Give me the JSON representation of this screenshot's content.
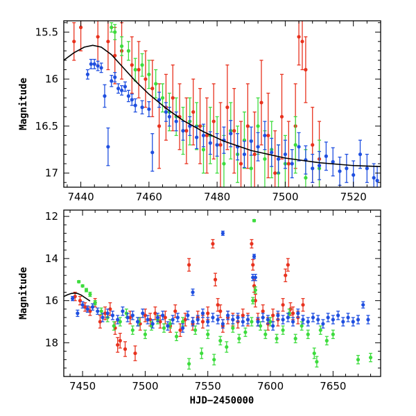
{
  "chart_data": [
    {
      "type": "scatter",
      "panel": "top",
      "title": "",
      "ylabel": "Magnitude",
      "xlabel": "",
      "xlim": [
        7435,
        7528
      ],
      "ylim": [
        17.15,
        15.38
      ],
      "y_inverted": true,
      "xticks": [
        7440,
        7460,
        7480,
        7500,
        7520
      ],
      "yticks": [
        15.5,
        16,
        16.5,
        17
      ],
      "xtick_labels": [
        "7440",
        "7460",
        "7480",
        "7500",
        "7520"
      ],
      "ytick_labels": [
        "15.5",
        "16",
        "16.5",
        "17"
      ],
      "model_curve": {
        "color": "#000000",
        "x": [
          7435,
          7438,
          7441,
          7443.5,
          7446,
          7449,
          7452,
          7456,
          7460,
          7465,
          7470,
          7476,
          7482,
          7490,
          7500,
          7510,
          7520,
          7528
        ],
        "y": [
          15.8,
          15.72,
          15.66,
          15.64,
          15.66,
          15.74,
          15.86,
          16.02,
          16.16,
          16.31,
          16.44,
          16.56,
          16.66,
          16.76,
          16.84,
          16.89,
          16.92,
          16.93
        ]
      },
      "series": [
        {
          "color": "#1f4fe0",
          "x": [
            7442,
            7443,
            7444,
            7445,
            7446,
            7447,
            7448,
            7449,
            7450,
            7451,
            7452,
            7453,
            7454,
            7455,
            7456,
            7458,
            7460,
            7461,
            7463,
            7465,
            7466,
            7468,
            7470,
            7472,
            7474,
            7476,
            7478,
            7480,
            7482,
            7484,
            7486,
            7488,
            7490,
            7492,
            7494,
            7496,
            7498,
            7500,
            7502,
            7504,
            7506,
            7508,
            7510,
            7512,
            7514,
            7516,
            7518,
            7520,
            7522,
            7524,
            7526,
            7527
          ],
          "y": [
            15.95,
            15.84,
            15.84,
            15.86,
            15.88,
            16.18,
            16.72,
            16.02,
            15.98,
            16.1,
            16.12,
            16.08,
            16.18,
            16.22,
            16.28,
            16.3,
            16.32,
            16.78,
            16.22,
            16.35,
            16.4,
            16.45,
            16.55,
            16.5,
            16.62,
            16.6,
            16.68,
            16.7,
            16.65,
            16.58,
            16.72,
            16.8,
            16.66,
            16.72,
            16.6,
            16.78,
            16.85,
            16.8,
            16.9,
            16.72,
            16.86,
            16.95,
            16.92,
            16.82,
            16.88,
            16.98,
            16.95,
            17.02,
            16.8,
            16.95,
            17.05,
            17.08
          ],
          "err": [
            0.05,
            0.05,
            0.05,
            0.05,
            0.05,
            0.12,
            0.2,
            0.06,
            0.05,
            0.05,
            0.05,
            0.05,
            0.06,
            0.06,
            0.07,
            0.07,
            0.08,
            0.2,
            0.08,
            0.1,
            0.1,
            0.1,
            0.1,
            0.1,
            0.12,
            0.12,
            0.12,
            0.12,
            0.14,
            0.14,
            0.14,
            0.14,
            0.15,
            0.15,
            0.15,
            0.15,
            0.15,
            0.15,
            0.15,
            0.15,
            0.15,
            0.15,
            0.15,
            0.15,
            0.15,
            0.15,
            0.15,
            0.15,
            0.15,
            0.15,
            0.15,
            0.15
          ]
        },
        {
          "color": "#e8321e",
          "x": [
            7438,
            7440,
            7445,
            7448,
            7450,
            7452,
            7455,
            7457,
            7459,
            7461,
            7463,
            7465,
            7467,
            7469,
            7471,
            7473,
            7475,
            7477,
            7479,
            7481,
            7483,
            7485,
            7487,
            7489,
            7491,
            7493,
            7495,
            7497,
            7499,
            7501,
            7503,
            7504,
            7505,
            7506,
            7508,
            7510
          ],
          "y": [
            15.6,
            15.45,
            15.55,
            15.6,
            15.75,
            15.7,
            15.85,
            15.9,
            16.0,
            16.1,
            16.5,
            16.3,
            16.2,
            16.4,
            16.55,
            16.35,
            16.5,
            16.6,
            16.45,
            16.7,
            16.3,
            16.55,
            16.9,
            16.5,
            16.8,
            16.25,
            16.6,
            17.0,
            16.4,
            16.9,
            16.5,
            15.55,
            15.6,
            15.9,
            16.7,
            16.85
          ],
          "err": [
            0.2,
            0.25,
            0.3,
            0.3,
            0.3,
            0.3,
            0.3,
            0.3,
            0.3,
            0.3,
            0.45,
            0.35,
            0.35,
            0.35,
            0.35,
            0.35,
            0.4,
            0.4,
            0.4,
            0.45,
            0.45,
            0.45,
            0.45,
            0.45,
            0.45,
            0.45,
            0.45,
            0.45,
            0.45,
            0.45,
            0.45,
            0.3,
            0.3,
            0.35,
            0.4,
            0.4
          ]
        },
        {
          "color": "#3ddc3d",
          "x": [
            7449,
            7450,
            7452,
            7454,
            7456,
            7458,
            7460,
            7462,
            7464,
            7466,
            7468,
            7470,
            7472,
            7474,
            7476,
            7478,
            7480,
            7482,
            7484,
            7486,
            7488,
            7490,
            7492,
            7494,
            7496,
            7498,
            7500,
            7503,
            7506,
            7510
          ],
          "y": [
            15.45,
            15.5,
            15.65,
            15.7,
            15.9,
            15.85,
            15.95,
            16.05,
            16.2,
            16.35,
            16.4,
            16.55,
            16.45,
            16.5,
            16.75,
            16.6,
            16.7,
            16.9,
            16.55,
            16.8,
            16.65,
            16.95,
            16.5,
            16.85,
            16.75,
            17.0,
            16.9,
            16.7,
            17.05,
            16.95
          ],
          "err": [
            0.05,
            0.08,
            0.1,
            0.1,
            0.12,
            0.12,
            0.15,
            0.15,
            0.15,
            0.2,
            0.2,
            0.25,
            0.25,
            0.25,
            0.25,
            0.3,
            0.3,
            0.3,
            0.3,
            0.3,
            0.3,
            0.3,
            0.3,
            0.3,
            0.3,
            0.3,
            0.3,
            0.3,
            0.3,
            0.3
          ]
        }
      ]
    },
    {
      "type": "scatter",
      "panel": "bottom",
      "title": "",
      "ylabel": "Magnitude",
      "xlabel": "HJD−2450000",
      "xlim": [
        7435,
        7688
      ],
      "ylim": [
        19.6,
        11.7
      ],
      "y_inverted": true,
      "xticks": [
        7450,
        7500,
        7550,
        7600,
        7650
      ],
      "yticks": [
        12,
        14,
        16,
        18
      ],
      "xtick_labels": [
        "7450",
        "7500",
        "7550",
        "7600",
        "7650"
      ],
      "ytick_labels": [
        "12",
        "14",
        "16",
        "18"
      ],
      "model_curve": {
        "color": "#000000",
        "x": [
          7435,
          7438,
          7441,
          7443.5,
          7446,
          7449,
          7452,
          7456
        ],
        "y": [
          15.8,
          15.72,
          15.66,
          15.64,
          15.66,
          15.74,
          15.86,
          16.02
        ]
      },
      "series": [
        {
          "color": "#1f4fe0",
          "x": [
            7442,
            7446,
            7450,
            7454,
            7458,
            7462,
            7466,
            7470,
            7474,
            7478,
            7482,
            7486,
            7490,
            7494,
            7498,
            7502,
            7506,
            7510,
            7514,
            7518,
            7522,
            7526,
            7530,
            7534,
            7538,
            7542,
            7546,
            7550,
            7554,
            7558,
            7562,
            7566,
            7570,
            7574,
            7578,
            7582,
            7586,
            7587,
            7590,
            7594,
            7598,
            7602,
            7606,
            7610,
            7614,
            7618,
            7622,
            7626,
            7630,
            7634,
            7638,
            7642,
            7646,
            7650,
            7654,
            7658,
            7662,
            7666,
            7670,
            7674,
            7678,
            7538,
            7562,
            7588
          ],
          "y": [
            15.9,
            16.6,
            16.2,
            16.4,
            16.3,
            16.5,
            16.8,
            16.6,
            16.7,
            16.9,
            16.5,
            16.8,
            16.7,
            17.0,
            16.6,
            16.9,
            17.1,
            16.8,
            16.7,
            17.2,
            16.9,
            16.8,
            17.3,
            16.7,
            17.0,
            16.9,
            16.6,
            17.0,
            16.8,
            16.9,
            17.1,
            16.7,
            16.9,
            16.8,
            17.0,
            16.9,
            14.9,
            13.9,
            17.0,
            16.8,
            16.9,
            17.2,
            16.7,
            16.9,
            16.8,
            17.0,
            16.6,
            16.9,
            17.0,
            16.8,
            16.9,
            17.1,
            16.8,
            16.9,
            16.7,
            17.0,
            16.8,
            17.0,
            16.9,
            16.2,
            16.9,
            15.6,
            12.8,
            14.9
          ],
          "err": [
            0.1,
            0.15,
            0.15,
            0.15,
            0.15,
            0.15,
            0.2,
            0.2,
            0.2,
            0.2,
            0.2,
            0.2,
            0.2,
            0.2,
            0.2,
            0.2,
            0.2,
            0.2,
            0.2,
            0.2,
            0.2,
            0.2,
            0.2,
            0.2,
            0.2,
            0.2,
            0.2,
            0.2,
            0.2,
            0.2,
            0.2,
            0.2,
            0.2,
            0.2,
            0.2,
            0.2,
            0.15,
            0.1,
            0.2,
            0.2,
            0.2,
            0.2,
            0.2,
            0.2,
            0.2,
            0.2,
            0.2,
            0.2,
            0.2,
            0.2,
            0.2,
            0.2,
            0.2,
            0.2,
            0.2,
            0.2,
            0.2,
            0.2,
            0.2,
            0.15,
            0.2,
            0.15,
            0.1,
            0.15
          ]
        },
        {
          "color": "#e8321e",
          "x": [
            7444,
            7448,
            7452,
            7456,
            7460,
            7464,
            7468,
            7472,
            7476,
            7478,
            7480,
            7484,
            7488,
            7492,
            7496,
            7500,
            7504,
            7508,
            7512,
            7516,
            7520,
            7524,
            7528,
            7532,
            7535,
            7538,
            7542,
            7546,
            7550,
            7554,
            7556,
            7558,
            7560,
            7562,
            7566,
            7570,
            7574,
            7578,
            7582,
            7585,
            7586,
            7587,
            7588,
            7590,
            7594,
            7598,
            7602,
            7606,
            7610,
            7612,
            7614,
            7616,
            7618,
            7622,
            7626
          ],
          "y": [
            15.8,
            16.0,
            16.3,
            16.5,
            16.1,
            17.0,
            16.6,
            16.4,
            17.3,
            18.1,
            17.9,
            18.3,
            16.8,
            18.5,
            17.1,
            16.7,
            16.9,
            16.6,
            17.0,
            16.8,
            17.2,
            16.5,
            17.4,
            16.9,
            14.3,
            17.1,
            16.8,
            17.0,
            16.6,
            13.3,
            15.0,
            16.2,
            16.5,
            17.2,
            16.8,
            16.9,
            17.0,
            16.7,
            16.9,
            13.3,
            14.3,
            15.3,
            16.0,
            16.9,
            16.5,
            17.1,
            16.7,
            16.9,
            16.2,
            14.8,
            14.3,
            16.4,
            16.6,
            16.8,
            16.2
          ],
          "err": [
            0.2,
            0.2,
            0.2,
            0.2,
            0.2,
            0.3,
            0.3,
            0.3,
            0.3,
            0.35,
            0.35,
            0.35,
            0.3,
            0.35,
            0.3,
            0.3,
            0.3,
            0.3,
            0.3,
            0.3,
            0.3,
            0.3,
            0.3,
            0.3,
            0.3,
            0.3,
            0.3,
            0.3,
            0.3,
            0.2,
            0.3,
            0.3,
            0.3,
            0.3,
            0.3,
            0.3,
            0.3,
            0.3,
            0.3,
            0.2,
            0.25,
            0.3,
            0.3,
            0.3,
            0.3,
            0.3,
            0.3,
            0.3,
            0.3,
            0.3,
            0.3,
            0.3,
            0.3,
            0.3,
            0.3
          ]
        },
        {
          "color": "#3ddc3d",
          "x": [
            7447,
            7450,
            7453,
            7456,
            7460,
            7465,
            7470,
            7475,
            7480,
            7485,
            7490,
            7495,
            7500,
            7505,
            7510,
            7515,
            7520,
            7525,
            7530,
            7535,
            7540,
            7545,
            7550,
            7555,
            7560,
            7565,
            7570,
            7575,
            7580,
            7585,
            7586,
            7587,
            7588,
            7592,
            7596,
            7600,
            7605,
            7610,
            7615,
            7620,
            7625,
            7630,
            7635,
            7637,
            7640,
            7645,
            7650,
            7670,
            7680
          ],
          "y": [
            15.1,
            15.3,
            15.5,
            15.7,
            16.1,
            16.5,
            16.8,
            17.2,
            17.0,
            16.6,
            17.4,
            17.0,
            17.6,
            17.2,
            16.9,
            17.3,
            17.1,
            17.7,
            17.0,
            19.0,
            17.4,
            18.5,
            17.6,
            18.8,
            17.9,
            18.2,
            17.3,
            17.8,
            17.5,
            17.0,
            16.0,
            12.2,
            15.5,
            17.2,
            17.6,
            17.0,
            17.8,
            17.4,
            16.6,
            17.8,
            17.2,
            17.6,
            18.5,
            18.9,
            17.4,
            17.9,
            17.6,
            18.8,
            18.7
          ],
          "err": [
            0.05,
            0.05,
            0.08,
            0.1,
            0.1,
            0.15,
            0.2,
            0.2,
            0.2,
            0.2,
            0.2,
            0.2,
            0.2,
            0.2,
            0.2,
            0.2,
            0.2,
            0.2,
            0.2,
            0.25,
            0.2,
            0.25,
            0.2,
            0.25,
            0.2,
            0.25,
            0.2,
            0.2,
            0.2,
            0.2,
            0.15,
            0.05,
            0.15,
            0.2,
            0.2,
            0.2,
            0.2,
            0.2,
            0.2,
            0.2,
            0.2,
            0.2,
            0.25,
            0.25,
            0.2,
            0.2,
            0.2,
            0.2,
            0.2
          ]
        }
      ]
    }
  ]
}
